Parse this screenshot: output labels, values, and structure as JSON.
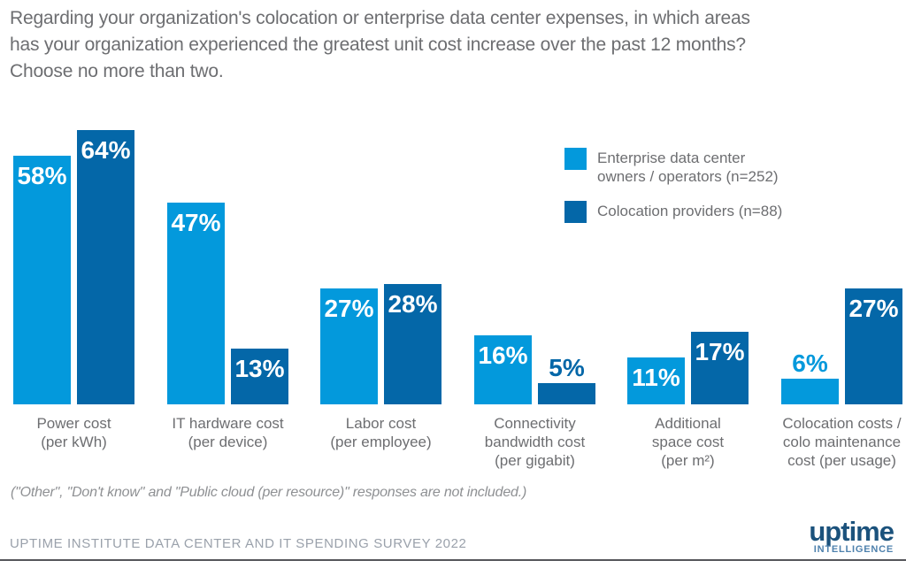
{
  "title": "Regarding your organization's colocation or enterprise data center expenses, in which areas\nhas your organization experienced the greatest unit cost increase over the past 12 months?\nChoose no more than two.",
  "legend": {
    "items": [
      {
        "label": "Enterprise data center\nowners / operators (n=252)",
        "color": "#0399DC"
      },
      {
        "label": "Colocation providers (n=88)",
        "color": "#0467A8"
      }
    ]
  },
  "chart_data": {
    "type": "bar",
    "unit": "%",
    "title": "Greatest unit cost increase over the past 12 months",
    "categories": [
      "Power cost\n(per kWh)",
      "IT hardware cost\n(per device)",
      "Labor cost\n(per employee)",
      "Connectivity\nbandwidth cost\n(per gigabit)",
      "Additional\nspace cost\n(per m²)",
      "Colocation costs /\ncolo maintenance\ncost (per usage)"
    ],
    "series": [
      {
        "name": "Enterprise data center owners / operators (n=252)",
        "color": "#0399DC",
        "values": [
          58,
          47,
          27,
          16,
          11,
          6
        ],
        "label_positions": [
          "inside",
          "inside",
          "inside",
          "inside",
          "inside",
          "above"
        ]
      },
      {
        "name": "Colocation providers (n=88)",
        "color": "#0467A8",
        "values": [
          64,
          13,
          28,
          5,
          17,
          27
        ],
        "label_positions": [
          "inside",
          "inside",
          "inside",
          "above",
          "inside",
          "inside"
        ]
      }
    ],
    "value_label_format": "{v}%",
    "ylim": [
      0,
      66
    ],
    "grid": false,
    "axis_labels_shown": false,
    "legend_position": "top-right"
  },
  "footnote": "(\"Other\", \"Don't know\" and \"Public cloud (per resource)\" responses are not included.)",
  "footer": {
    "survey": "UPTIME INSTITUTE DATA CENTER AND IT SPENDING SURVEY 2022",
    "logo": {
      "brand": "uptime",
      "sub": "INTELLIGENCE"
    }
  },
  "colors": {
    "series_light": "#0399DC",
    "series_dark": "#0467A8",
    "text_gray": "#6D6E71",
    "footnote_gray": "#8E9093",
    "footer_gray": "#9AA1AB",
    "logo_navy": "#1B527C",
    "logo_steel": "#4E81AD",
    "rule": "#55565A"
  }
}
